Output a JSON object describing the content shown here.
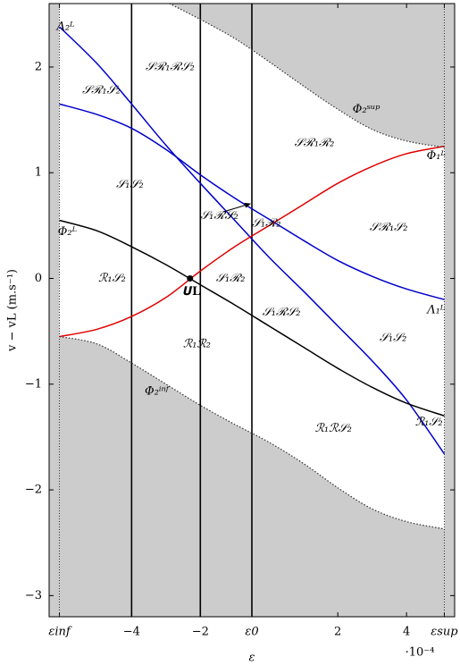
{
  "chart_data": {
    "type": "line",
    "xlabel": "ε",
    "ylabel": "v − vL  (m.s⁻¹)",
    "x_multiplier": "·10⁻⁴",
    "xlim": [
      -6.4,
      5.4
    ],
    "ylim": [
      -3.2,
      2.6
    ],
    "xticks": [
      {
        "value": -6.1,
        "label": "εinf"
      },
      {
        "value": -4,
        "label": "−4"
      },
      {
        "value": -2,
        "label": "−2"
      },
      {
        "value": -0.5,
        "label": "ε0"
      },
      2,
      4,
      {
        "value": 5.1,
        "label": "εsup"
      }
    ],
    "yticks": [
      {
        "value": -3,
        "label": "−3"
      },
      {
        "value": -2,
        "label": "−2"
      },
      {
        "value": -1,
        "label": "−1"
      },
      0,
      1,
      2
    ],
    "shade_color": "#cccccc",
    "series": [
      {
        "color": "#0000cc",
        "linestyle": "solid",
        "x": [
          -6.1,
          -5,
          -4,
          -3,
          -2,
          -1,
          0,
          1,
          2,
          3,
          4,
          5.1
        ],
        "values": [
          2.38,
          2.03,
          1.65,
          1.26,
          0.9,
          0.55,
          0.2,
          -0.12,
          -0.45,
          -0.78,
          -1.15,
          -1.66
        ]
      },
      {
        "color": "#0000cc",
        "linestyle": "solid",
        "x": [
          -6.1,
          -5,
          -4,
          -3,
          -2,
          -1,
          0,
          1,
          2,
          3,
          4,
          5.1
        ],
        "values": [
          1.65,
          1.55,
          1.42,
          1.22,
          0.98,
          0.76,
          0.56,
          0.36,
          0.17,
          0.02,
          -0.1,
          -0.2
        ]
      },
      {
        "color": "#e00000",
        "linestyle": "solid",
        "x": [
          -6.1,
          -5,
          -4,
          -3,
          -2,
          -1,
          0,
          1,
          2,
          3,
          4,
          5.1
        ],
        "values": [
          -0.55,
          -0.48,
          -0.36,
          -0.18,
          0.07,
          0.3,
          0.5,
          0.7,
          0.9,
          1.06,
          1.18,
          1.25
        ]
      },
      {
        "color": "#000000",
        "linestyle": "solid",
        "x": [
          -6.1,
          -5,
          -4,
          -3,
          -2,
          -1,
          0,
          1,
          2,
          3,
          4,
          5.1
        ],
        "values": [
          0.55,
          0.45,
          0.3,
          0.13,
          -0.06,
          -0.25,
          -0.45,
          -0.65,
          -0.85,
          -1.03,
          -1.18,
          -1.3
        ]
      },
      {
        "color": "#333333",
        "linestyle": "dotted",
        "shade": "above",
        "x": [
          -2.9,
          -2,
          -1,
          0,
          1,
          2,
          3,
          4,
          5.1
        ],
        "values": [
          2.6,
          2.45,
          2.27,
          2.05,
          1.82,
          1.6,
          1.41,
          1.3,
          1.24
        ]
      },
      {
        "color": "#333333",
        "linestyle": "dotted",
        "shade": "below",
        "x": [
          -6.1,
          -5,
          -4,
          -3,
          -2,
          -1,
          0,
          1,
          2,
          3,
          4,
          5.1
        ],
        "values": [
          -0.55,
          -0.62,
          -0.8,
          -1.0,
          -1.2,
          -1.38,
          -1.55,
          -1.75,
          -1.98,
          -2.18,
          -2.3,
          -2.37
        ]
      }
    ],
    "point": {
      "label": "𝑼L",
      "x": -2.3,
      "y": 0
    },
    "annotations": [
      {
        "text": "𝒮ℛ₁ℛ𝒮₂",
        "x": -2.88,
        "y": 2.0
      },
      {
        "text": "𝒮ℛ₁𝒮₂",
        "x": -4.88,
        "y": 1.78
      },
      {
        "text": "𝒮ℛ₁ℛ₂",
        "x": 1.32,
        "y": 1.28
      },
      {
        "text": "Φ₂ˢᵘᵖ",
        "x": 2.83,
        "y": 1.6
      },
      {
        "text": "Φ₁ᴸ",
        "x": 4.86,
        "y": 1.16
      },
      {
        "text": "Λ₂ᴸ",
        "x": -5.92,
        "y": 2.38
      },
      {
        "text": "𝒮₁𝒮₂",
        "x": -4.05,
        "y": 0.89
      },
      {
        "text": "𝒮₁ℛ𝒮₂",
        "x": -1.45,
        "y": 0.59
      },
      {
        "text": "𝒮₁ℛ₂",
        "x": -0.08,
        "y": 0.52
      },
      {
        "text": "𝒮ℛ₁𝒮₂",
        "x": 3.48,
        "y": 0.48
      },
      {
        "text": "Φ₂ᴸ",
        "x": -5.87,
        "y": 0.44
      },
      {
        "text": "ℛ₁𝒮₂",
        "x": -4.57,
        "y": 0
      },
      {
        "text": "𝒮₁ℛ₂",
        "x": -1.12,
        "y": 0
      },
      {
        "text": "𝒮₁ℛ𝒮₂",
        "x": 0.36,
        "y": -0.32
      },
      {
        "text": "Λ₁ᴸ",
        "x": 4.86,
        "y": -0.3
      },
      {
        "text": "ℛ₁ℛ₂",
        "x": -2.1,
        "y": -0.62
      },
      {
        "text": "𝒮₁𝒮₂",
        "x": 3.61,
        "y": -0.56
      },
      {
        "text": "Φ₂ⁱⁿᶠ",
        "x": -3.27,
        "y": -1.07
      },
      {
        "text": "ℛ₁ℛ𝒮₂",
        "x": 1.87,
        "y": -1.42
      },
      {
        "text": "ℛ₁𝒮₂",
        "x": 4.65,
        "y": -1.36
      }
    ]
  }
}
